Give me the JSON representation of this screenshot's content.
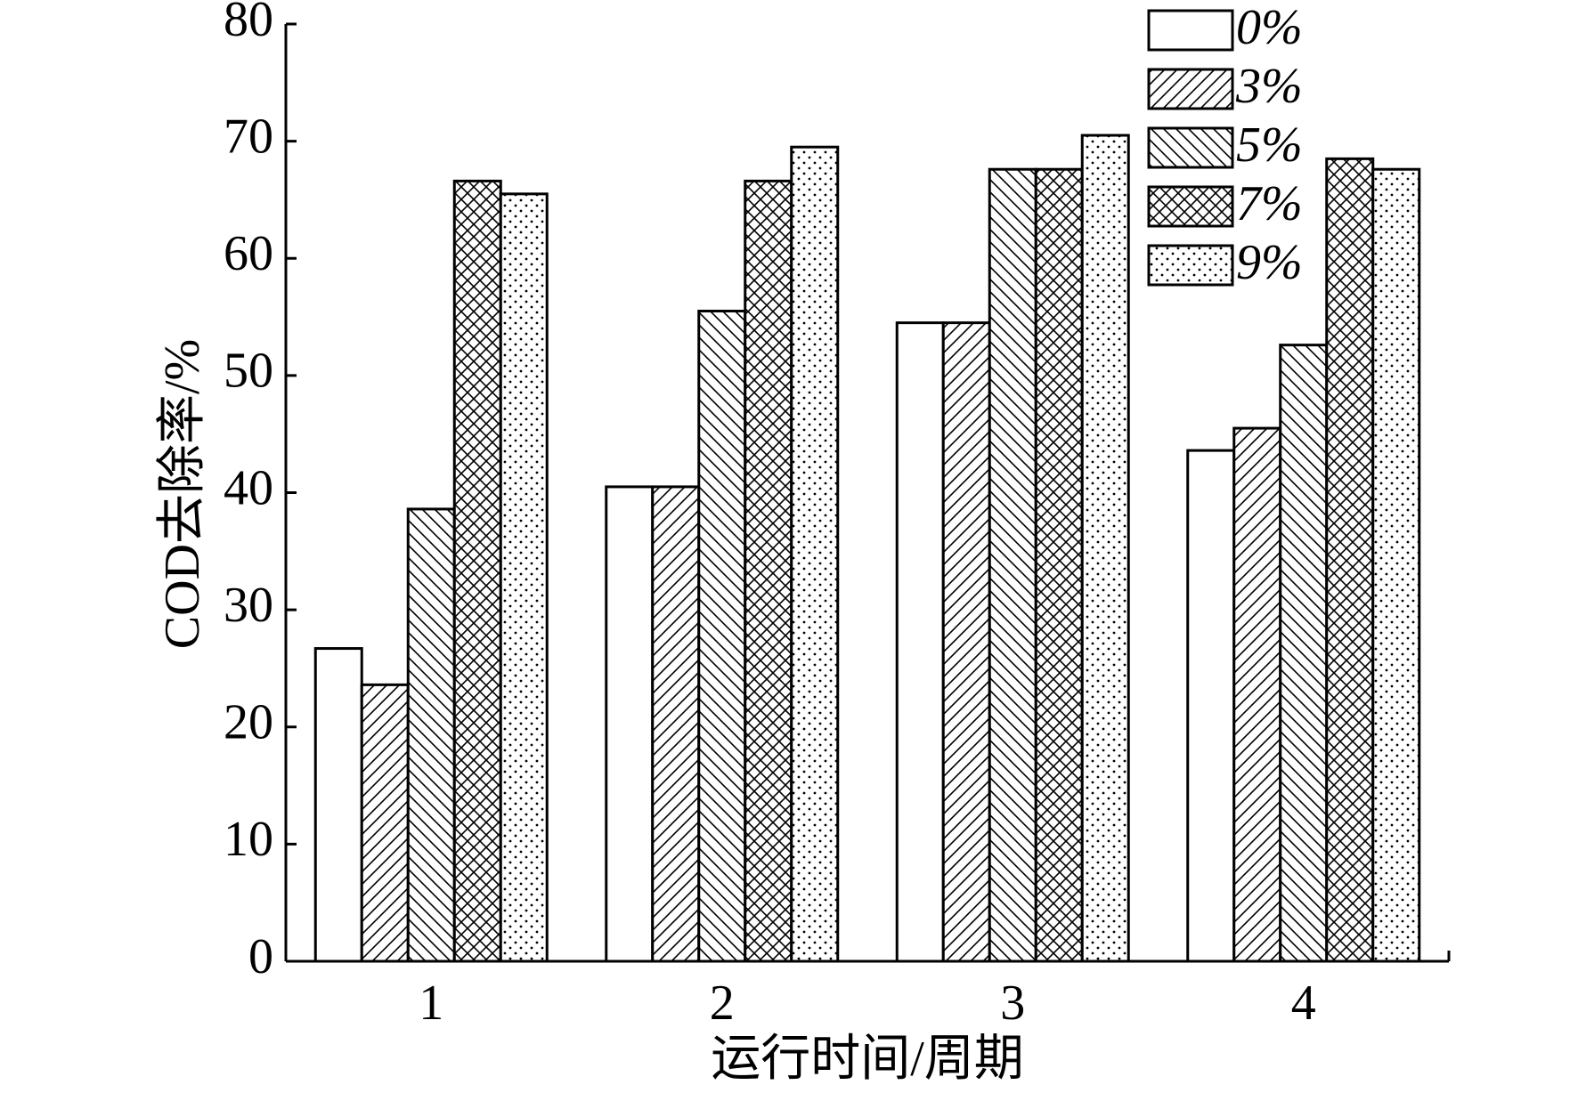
{
  "chart_data": {
    "type": "bar",
    "x_label": "运行时间/周期",
    "y_label": "COD去除率/%",
    "categories": [
      "1",
      "2",
      "3",
      "4"
    ],
    "series": [
      {
        "name": "0%",
        "color": "#ffffff",
        "hatch": "none",
        "values": [
          26.7,
          40.5,
          54.5,
          43.6
        ]
      },
      {
        "name": "3%",
        "color": "#ffffff",
        "hatch": "forward",
        "values": [
          23.6,
          40.5,
          54.5,
          45.5
        ]
      },
      {
        "name": "5%",
        "color": "#ffffff",
        "hatch": "backward",
        "values": [
          38.6,
          55.5,
          67.6,
          52.6
        ]
      },
      {
        "name": "7%",
        "color": "#ffffff",
        "hatch": "cross",
        "values": [
          66.6,
          66.6,
          67.6,
          68.5
        ]
      },
      {
        "name": "9%",
        "color": "#ffffff",
        "hatch": "dots",
        "values": [
          65.5,
          69.5,
          70.5,
          67.6
        ]
      }
    ],
    "ylim": [
      0,
      80
    ],
    "yticks": [
      0,
      10,
      20,
      30,
      40,
      50,
      60,
      70,
      80
    ],
    "grid": false,
    "legend": "upper right"
  }
}
